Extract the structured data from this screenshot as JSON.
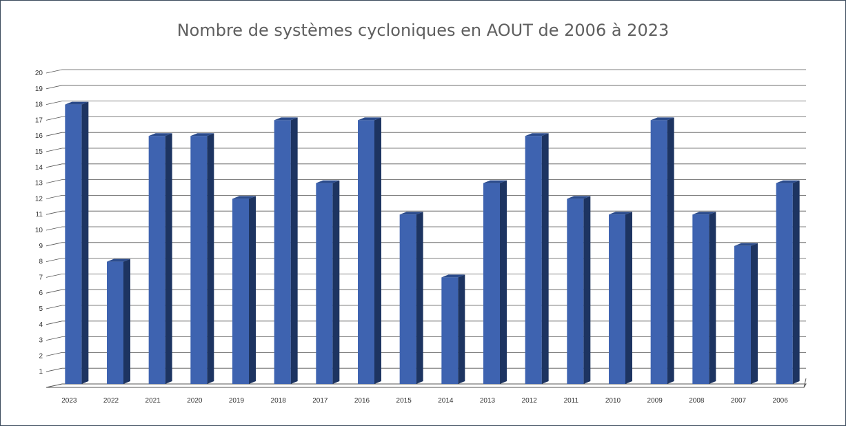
{
  "chart_data": {
    "type": "bar",
    "title": "Nombre de systèmes cycloniques en AOUT de 2006 à 2023",
    "xlabel": "",
    "ylabel": "",
    "categories": [
      "2023",
      "2022",
      "2021",
      "2020",
      "2019",
      "2018",
      "2017",
      "2016",
      "2015",
      "2014",
      "2013",
      "2012",
      "2011",
      "2010",
      "2009",
      "2008",
      "2007",
      "2006"
    ],
    "series": [
      {
        "values": [
          18,
          8,
          16,
          16,
          12,
          17,
          13,
          17,
          11,
          7,
          13,
          16,
          12,
          11,
          17,
          11,
          9,
          13
        ]
      }
    ],
    "ylim": [
      0,
      20
    ],
    "yticks": [
      "1",
      "2",
      "3",
      "4",
      "5",
      "6",
      "7",
      "8",
      "9",
      "10",
      "11",
      "12",
      "13",
      "14",
      "15",
      "16",
      "17",
      "18",
      "19",
      "20"
    ],
    "grid": true,
    "legend": "none",
    "colors": {
      "bar_front": "#3e63b0",
      "bar_side": "#1d3461",
      "bar_top": "#2c4c8c",
      "grid": "#555555"
    }
  }
}
